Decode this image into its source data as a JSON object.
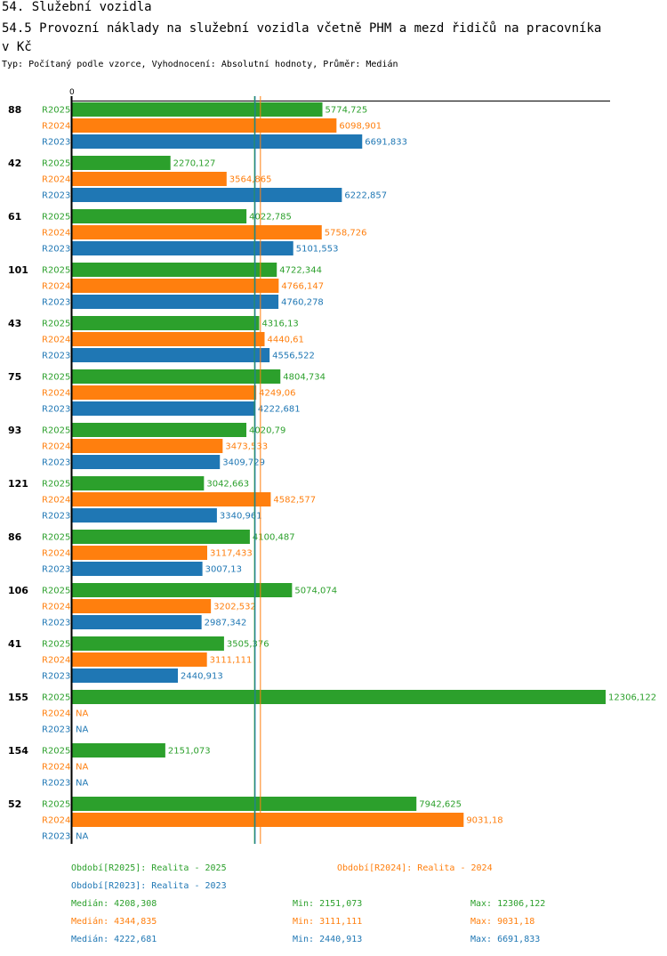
{
  "header": {
    "section": "54. Služební vozidla",
    "title_line1": "54.5 Provozní náklady na služební vozidla včetně PHM a mezd řidičů na pracovníka",
    "title_line2": "v Kč",
    "subtitle": "Typ: Počítaný podle vzorce, Vyhodnocení: Absolutní hodnoty, Průměr: Medián"
  },
  "colors": {
    "R2025": "#2ca02c",
    "R2024": "#ff7f0e",
    "R2023": "#1f77b4"
  },
  "chart_data": {
    "type": "bar",
    "orientation": "horizontal",
    "axis_zero_label": "0",
    "xlim": [
      0,
      12306.122
    ],
    "categories": [
      "88",
      "42",
      "61",
      "101",
      "43",
      "75",
      "93",
      "121",
      "86",
      "106",
      "41",
      "155",
      "154",
      "52"
    ],
    "series": [
      {
        "name": "R2025",
        "values": [
          5774.725,
          2270.127,
          4022.785,
          4722.344,
          4316.13,
          4804.734,
          4020.79,
          3042.663,
          4100.487,
          5074.074,
          3505.376,
          12306.122,
          2151.073,
          7942.625
        ],
        "labels": [
          "5774,725",
          "2270,127",
          "4022,785",
          "4722,344",
          "4316,13",
          "4804,734",
          "4020,79",
          "3042,663",
          "4100,487",
          "5074,074",
          "3505,376",
          "12306,122",
          "2151,073",
          "7942,625"
        ]
      },
      {
        "name": "R2024",
        "values": [
          6098.901,
          3564.865,
          5758.726,
          4766.147,
          4440.61,
          4249.06,
          3473.533,
          4582.577,
          3117.433,
          3202.532,
          3111.111,
          null,
          null,
          9031.18
        ],
        "labels": [
          "6098,901",
          "3564,865",
          "5758,726",
          "4766,147",
          "4440,61",
          "4249,06",
          "3473,533",
          "4582,577",
          "3117,433",
          "3202,532",
          "3111,111",
          "NA",
          "NA",
          "9031,18"
        ]
      },
      {
        "name": "R2023",
        "values": [
          6691.833,
          6222.857,
          5101.553,
          4760.278,
          4556.522,
          4222.681,
          3409.729,
          3340.961,
          3007.13,
          2987.342,
          2440.913,
          null,
          null,
          null
        ],
        "labels": [
          "6691,833",
          "6222,857",
          "5101,553",
          "4760,278",
          "4556,522",
          "4222,681",
          "3409,729",
          "3340,961",
          "3007,13",
          "2987,342",
          "2440,913",
          "NA",
          "NA",
          "NA"
        ]
      }
    ],
    "median_lines": {
      "R2025": 4208.308,
      "R2024": 4344.835,
      "R2023": 4222.681
    }
  },
  "legend": {
    "r2025": "Období[R2025]: Realita - 2025",
    "r2024": "Období[R2024]: Realita - 2024",
    "r2023": "Období[R2023]: Realita - 2023"
  },
  "stats": [
    {
      "median": "Medián: 4208,308",
      "min": "Min: 2151,073",
      "max": "Max: 12306,122"
    },
    {
      "median": "Medián: 4344,835",
      "min": "Min: 3111,111",
      "max": "Max: 9031,18"
    },
    {
      "median": "Medián: 4222,681",
      "min": "Min: 2440,913",
      "max": "Max: 6691,833"
    }
  ]
}
